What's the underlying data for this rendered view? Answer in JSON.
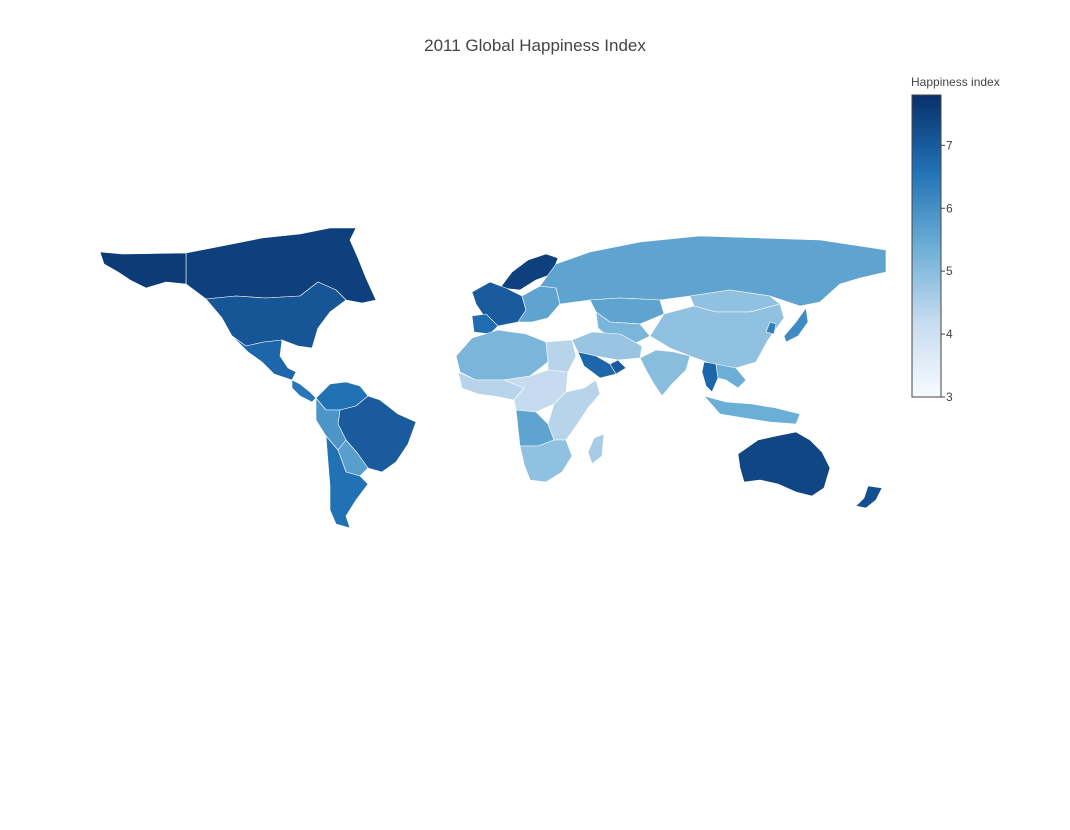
{
  "title": "2011 Global Happiness Index",
  "colorbar": {
    "title": "Happiness index",
    "min": 3,
    "max": 7.8,
    "ticks": [
      7,
      6,
      5,
      4,
      3
    ],
    "colorscale": [
      "#f7fbff",
      "#c6dbef",
      "#6baed6",
      "#2171b5",
      "#08306b"
    ]
  },
  "chart_data": {
    "type": "choropleth",
    "title": "2011 Global Happiness Index",
    "colorbar_title": "Happiness index",
    "zrange": [
      3,
      7.8
    ],
    "regions": [
      {
        "name": "Canada",
        "value": 7.5
      },
      {
        "name": "Greenland",
        "value": 7.6
      },
      {
        "name": "United States",
        "value": 7.1
      },
      {
        "name": "Mexico",
        "value": 6.8
      },
      {
        "name": "Central America",
        "value": 6.5
      },
      {
        "name": "Colombia/Venezuela",
        "value": 6.6
      },
      {
        "name": "Brazil",
        "value": 7.0
      },
      {
        "name": "Peru",
        "value": 5.9
      },
      {
        "name": "Bolivia",
        "value": 5.7
      },
      {
        "name": "Chile/Argentina",
        "value": 6.6
      },
      {
        "name": "Scandinavia",
        "value": 7.5
      },
      {
        "name": "Western Europe",
        "value": 7.0
      },
      {
        "name": "Iberia",
        "value": 6.7
      },
      {
        "name": "Eastern Europe",
        "value": 5.6
      },
      {
        "name": "Russia",
        "value": 5.6
      },
      {
        "name": "Kazakhstan",
        "value": 5.6
      },
      {
        "name": "Central Asia",
        "value": 5.2
      },
      {
        "name": "Mongolia",
        "value": 4.9
      },
      {
        "name": "China",
        "value": 4.9
      },
      {
        "name": "Japan",
        "value": 6.1
      },
      {
        "name": "Korea",
        "value": 6.3
      },
      {
        "name": "North Africa",
        "value": 5.2
      },
      {
        "name": "Egypt",
        "value": 4.4
      },
      {
        "name": "West Africa",
        "value": 4.4
      },
      {
        "name": "Central Africa",
        "value": 4.2
      },
      {
        "name": "East Africa",
        "value": 4.4
      },
      {
        "name": "Angola",
        "value": 5.6
      },
      {
        "name": "Southern Africa",
        "value": 4.9
      },
      {
        "name": "Madagascar",
        "value": 4.6
      },
      {
        "name": "Middle East",
        "value": 4.8
      },
      {
        "name": "Saudi Arabia",
        "value": 6.8
      },
      {
        "name": "Oman/UAE",
        "value": 7.0
      },
      {
        "name": "India",
        "value": 5.0
      },
      {
        "name": "Thailand",
        "value": 6.8
      },
      {
        "name": "Southeast Asia",
        "value": 5.4
      },
      {
        "name": "Indonesia",
        "value": 5.4
      },
      {
        "name": "Australia",
        "value": 7.4
      },
      {
        "name": "New Zealand",
        "value": 7.2
      }
    ]
  }
}
